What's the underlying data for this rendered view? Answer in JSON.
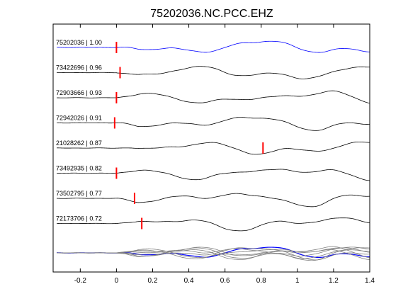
{
  "chart_data": {
    "type": "line",
    "title": "75202036.NC.PCC.EHZ",
    "xlabel": "",
    "ylabel": "",
    "xlim": [
      -0.35,
      1.4
    ],
    "xticks": [
      -0.2,
      0,
      0.2,
      0.4,
      0.6,
      0.8,
      1,
      1.2,
      1.4
    ],
    "xtick_labels": [
      "-0.2",
      "0",
      "0.2",
      "0.4",
      "0.6",
      "0.8",
      "1",
      "1.2",
      "1.4"
    ],
    "grid": false,
    "legend": "none",
    "colors": {
      "reference": "#0000ff",
      "trace": "#000000",
      "pick": "#ff0000",
      "stack": "#808080"
    },
    "traces": [
      {
        "label": "75202036 | 1.00",
        "event_id": "75202036",
        "correlation": 1.0,
        "pick_time": 0.0,
        "reference": true
      },
      {
        "label": "73422696 | 0.96",
        "event_id": "73422696",
        "correlation": 0.96,
        "pick_time": 0.02
      },
      {
        "label": "72903666 | 0.93",
        "event_id": "72903666",
        "correlation": 0.93,
        "pick_time": 0.0
      },
      {
        "label": "72942026 | 0.91",
        "event_id": "72942026",
        "correlation": 0.91,
        "pick_time": -0.01
      },
      {
        "label": "21028262 | 0.87",
        "event_id": "21028262",
        "correlation": 0.87,
        "pick_time": 0.81
      },
      {
        "label": "73492935 | 0.82",
        "event_id": "73492935",
        "correlation": 0.82,
        "pick_time": 0.0
      },
      {
        "label": "73502795 | 0.77",
        "event_id": "73502795",
        "correlation": 0.77,
        "pick_time": 0.1
      },
      {
        "label": "72173706 | 0.72",
        "event_id": "72173706",
        "correlation": 0.72,
        "pick_time": 0.14
      }
    ],
    "stack": {
      "description_visible": false
    }
  }
}
